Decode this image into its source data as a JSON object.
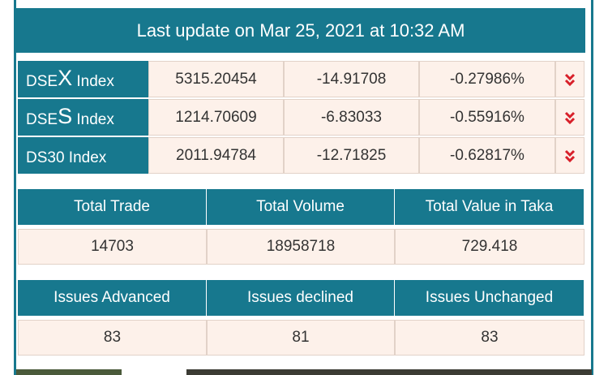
{
  "header": {
    "title": "Last update on Mar 25, 2021 at 10:32 AM"
  },
  "indices": [
    {
      "name": [
        "DSE",
        "X",
        " Index"
      ],
      "value": "5315.20454",
      "change": "-14.91708",
      "percent": "-0.27986%"
    },
    {
      "name": [
        "DSE",
        "S",
        " Index"
      ],
      "value": "1214.70609",
      "change": "-6.83033",
      "percent": "-0.55916%"
    },
    {
      "name": [
        "DS30 Index"
      ],
      "value": "2011.94784",
      "change": "-12.71825",
      "percent": "-0.62817%"
    }
  ],
  "stats": [
    {
      "headers": [
        "Total Trade",
        "Total Volume",
        "Total Value in Taka"
      ],
      "values": [
        "14703",
        "18958718",
        "729.418"
      ]
    },
    {
      "headers": [
        "Issues Advanced",
        "Issues declined",
        "Issues Unchanged"
      ],
      "values": [
        "83",
        "81",
        "83"
      ]
    }
  ]
}
